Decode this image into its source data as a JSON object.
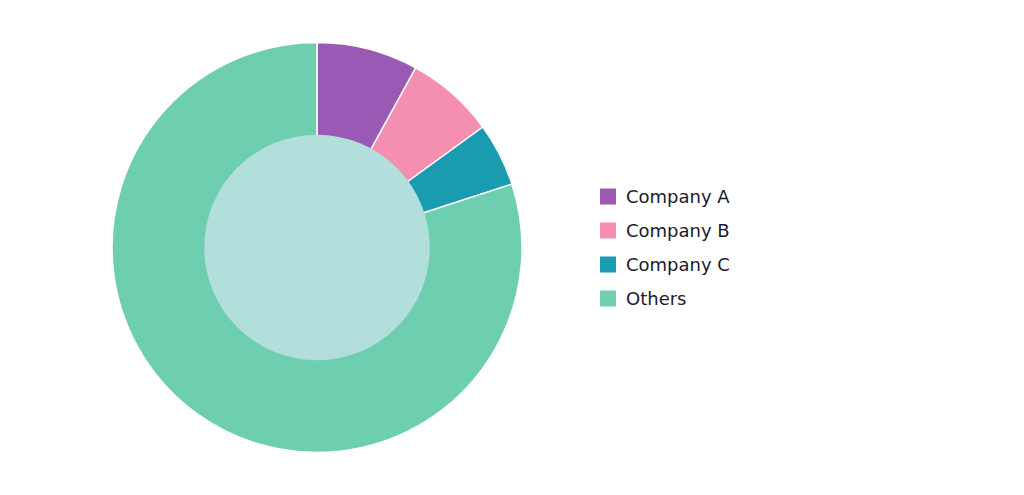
{
  "chart_data": {
    "type": "pie",
    "categories": [
      "Company A",
      "Company B",
      "Company C",
      "Others"
    ],
    "values": [
      8,
      7,
      5,
      80
    ],
    "colors": [
      "#9b59b6",
      "#f48fb1",
      "#1a9cb0",
      "#6dcfb0"
    ],
    "legend": "right"
  }
}
